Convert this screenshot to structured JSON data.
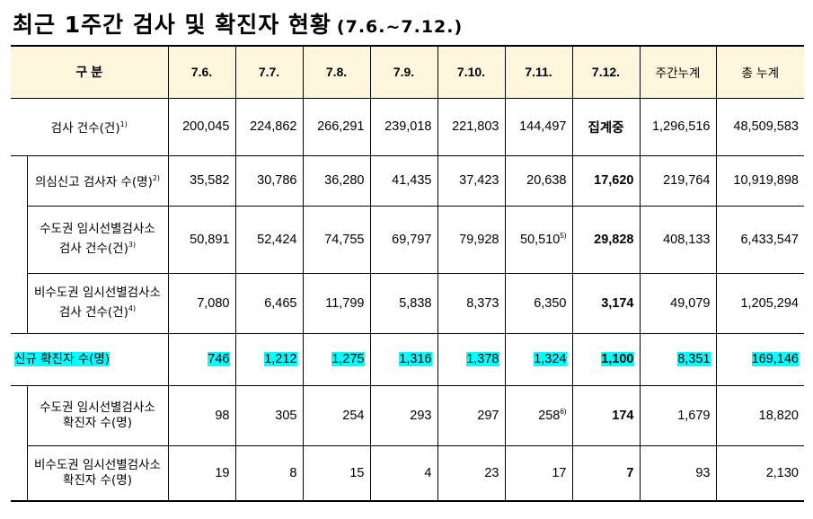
{
  "title": "최근 1주간 검사 및 확진자 현황",
  "period": "(7.6.~7.12.)",
  "table": {
    "header": [
      "구 분",
      "7.6.",
      "7.7.",
      "7.8.",
      "7.9.",
      "7.10.",
      "7.11.",
      "7.12.",
      "주간누계",
      "총 누계"
    ],
    "rows": [
      {
        "label": "검사 건수(건)",
        "note": "1)",
        "cells": [
          {
            "text": "200,045"
          },
          {
            "text": "224,862"
          },
          {
            "text": "266,291"
          },
          {
            "text": "239,018"
          },
          {
            "text": "221,803"
          },
          {
            "text": "144,497"
          },
          {
            "text": "집계중"
          },
          {
            "text": "1,296,516"
          },
          {
            "text": "48,509,583"
          }
        ]
      },
      {
        "label": "의심신고 검사자 수(명)",
        "note": "2)",
        "cells": [
          {
            "text": "35,582"
          },
          {
            "text": "30,786"
          },
          {
            "text": "36,280"
          },
          {
            "text": "41,435"
          },
          {
            "text": "37,423"
          },
          {
            "text": "20,638"
          },
          {
            "text": "17,620"
          },
          {
            "text": "219,764"
          },
          {
            "text": "10,919,898"
          }
        ]
      },
      {
        "label": "수도권 임시선별검사소\n검사 건수(건)",
        "note": "3)",
        "cells": [
          {
            "text": "50,891"
          },
          {
            "text": "52,424"
          },
          {
            "text": "74,755"
          },
          {
            "text": "69,797"
          },
          {
            "text": "79,928"
          },
          {
            "text": "50,510",
            "note": "5)"
          },
          {
            "text": "29,828"
          },
          {
            "text": "408,133"
          },
          {
            "text": "6,433,547"
          }
        ]
      },
      {
        "label": "비수도권 임시선별검사소\n검사 건수(건)",
        "note": "4)",
        "cells": [
          {
            "text": "7,080"
          },
          {
            "text": "6,465"
          },
          {
            "text": "11,799"
          },
          {
            "text": "5,838"
          },
          {
            "text": "8,373"
          },
          {
            "text": "6,350"
          },
          {
            "text": "3,174"
          },
          {
            "text": "49,079"
          },
          {
            "text": "1,205,294"
          }
        ]
      },
      {
        "label": "신규 확진자 수(명)",
        "cells": [
          {
            "text": "746"
          },
          {
            "text": "1,212"
          },
          {
            "text": "1,275"
          },
          {
            "text": "1,316"
          },
          {
            "text": "1,378"
          },
          {
            "text": "1,324"
          },
          {
            "text": "1,100"
          },
          {
            "text": "8,351"
          },
          {
            "text": "169,146"
          }
        ]
      },
      {
        "label": "수도권 임시선별검사소\n확진자 수(명)",
        "cells": [
          {
            "text": "98"
          },
          {
            "text": "305"
          },
          {
            "text": "254"
          },
          {
            "text": "293"
          },
          {
            "text": "297"
          },
          {
            "text": "258",
            "note": "6)"
          },
          {
            "text": "174"
          },
          {
            "text": "1,679"
          },
          {
            "text": "18,820"
          }
        ]
      },
      {
        "label": "비수도권 임시선별검사소\n확진자 수(명)",
        "cells": [
          {
            "text": "19"
          },
          {
            "text": "8"
          },
          {
            "text": "15"
          },
          {
            "text": "4"
          },
          {
            "text": "23"
          },
          {
            "text": "17"
          },
          {
            "text": "7"
          },
          {
            "text": "93"
          },
          {
            "text": "2,130"
          }
        ]
      }
    ]
  }
}
